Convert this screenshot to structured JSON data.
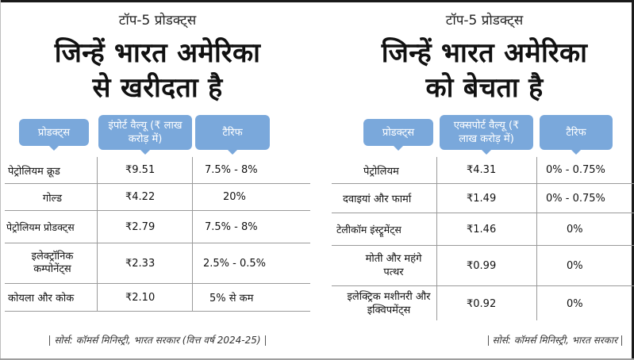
{
  "left": {
    "kicker": "टॉप-5 प्रोडक्ट्स",
    "headline_line1": "जिन्हें भारत अमेरिका",
    "headline_line2": "से खरीदता है",
    "headers": [
      "प्रोडक्ट्स",
      "इंपोर्ट वैल्यू (₹ लाख करोड़ में)",
      "टैरिफ"
    ],
    "rows": [
      {
        "product": "पेट्रोलियम क्रूड",
        "value": "₹9.51",
        "tariff": "7.5% - 8%"
      },
      {
        "product": "गोल्ड",
        "value": "₹4.22",
        "tariff": "20%"
      },
      {
        "product": "पेट्रोलियम प्रोडक्ट्स",
        "value": "₹2.79",
        "tariff": "7.5% - 8%"
      },
      {
        "product": "इलेक्ट्रॉनिक कम्पोनेंट्स",
        "value": "₹2.33",
        "tariff": "2.5% - 0.5%"
      },
      {
        "product": "कोयला और कोक",
        "value": "₹2.10",
        "tariff": "5% से कम"
      }
    ],
    "source": "सोर्स: कॉमर्स मिनिस्ट्री, भारत सरकार (वित्त वर्ष 2024-25)"
  },
  "right": {
    "kicker": "टॉप-5 प्रोडक्ट्स",
    "headline_line1": "जिन्हें भारत अमेरिका",
    "headline_line2": "को बेचता है",
    "headers": [
      "प्रोडक्ट्स",
      "एक्सपोर्ट वैल्यू (₹ लाख करोड़ में)",
      "टैरिफ"
    ],
    "rows": [
      {
        "product": "पेट्रोलियम",
        "value": "₹4.31",
        "tariff": "0% - 0.75%"
      },
      {
        "product": "दवाइयां और फार्मा",
        "value": "₹1.49",
        "tariff": "0% - 0.75%"
      },
      {
        "product": "टेलीकॉम इंस्ट्रूमेंट्स",
        "value": "₹1.46",
        "tariff": "0%"
      },
      {
        "product": "मोती और महंगे पत्थर",
        "value": "₹0.99",
        "tariff": "0%"
      },
      {
        "product": "इलेक्ट्रिक मशीनरी और इक्विपमेंट्स",
        "value": "₹0.92",
        "tariff": "0%"
      }
    ],
    "source": "सोर्स: कॉमर्स मिनिस्ट्री, भारत सरकार"
  },
  "colors": {
    "header_blue": "#7aa8db",
    "rule_gray": "#9a9a9a"
  }
}
